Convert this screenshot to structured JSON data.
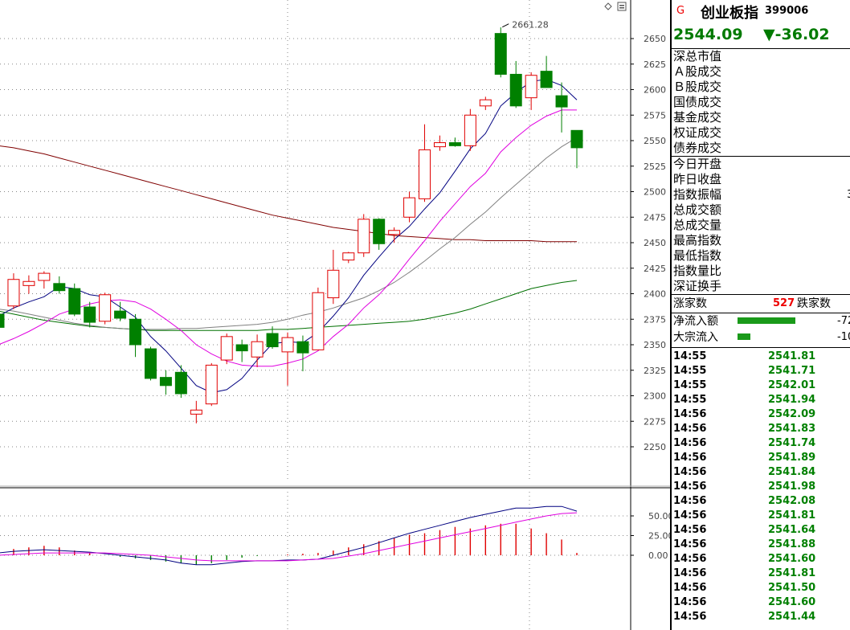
{
  "index": {
    "marker": "G",
    "name": "创业板指",
    "code": "399006",
    "price": "2544.09",
    "change": "▼-36.02"
  },
  "stats_a": [
    "深总市值",
    "Ａ股成交",
    "Ｂ股成交",
    "国债成交",
    "基金成交",
    "权证成交",
    "债券成交"
  ],
  "stats_b": [
    {
      "label": "今日开盘",
      "value": ""
    },
    {
      "label": "昨日收盘",
      "value": ""
    },
    {
      "label": "指数振幅",
      "value": "3"
    },
    {
      "label": "总成交额",
      "value": ""
    },
    {
      "label": "总成交量",
      "value": ""
    },
    {
      "label": "最高指数",
      "value": ""
    },
    {
      "label": "最低指数",
      "value": ""
    },
    {
      "label": "指数量比",
      "value": ""
    },
    {
      "label": "深证换手",
      "value": ""
    }
  ],
  "advance_decline": {
    "up_label": "涨家数",
    "down_count": "527",
    "down_label": "跌家数"
  },
  "flows": [
    {
      "label": "净流入额",
      "value": "-72",
      "bar": 0.55
    },
    {
      "label": "大宗流入",
      "value": "-10",
      "bar": 0.12
    }
  ],
  "ticks": [
    {
      "time": "14:55",
      "price": "2541.81"
    },
    {
      "time": "14:55",
      "price": "2541.71"
    },
    {
      "time": "14:55",
      "price": "2542.01"
    },
    {
      "time": "14:55",
      "price": "2541.94"
    },
    {
      "time": "14:56",
      "price": "2542.09"
    },
    {
      "time": "14:56",
      "price": "2541.83"
    },
    {
      "time": "14:56",
      "price": "2541.74"
    },
    {
      "time": "14:56",
      "price": "2541.89"
    },
    {
      "time": "14:56",
      "price": "2541.84"
    },
    {
      "time": "14:56",
      "price": "2541.98"
    },
    {
      "time": "14:56",
      "price": "2542.08"
    },
    {
      "time": "14:56",
      "price": "2541.81"
    },
    {
      "time": "14:56",
      "price": "2541.64"
    },
    {
      "time": "14:56",
      "price": "2541.88"
    },
    {
      "time": "14:56",
      "price": "2541.60"
    },
    {
      "time": "14:56",
      "price": "2541.81"
    },
    {
      "time": "14:56",
      "price": "2541.50"
    },
    {
      "time": "14:56",
      "price": "2541.60"
    },
    {
      "time": "14:56",
      "price": "2541.44"
    }
  ],
  "chart_data": [
    {
      "type": "candlestick",
      "title": "",
      "xlabel": "",
      "ylabel": "",
      "ylim": [
        2230,
        2670
      ],
      "yticks": [
        "2650",
        "2625",
        "2600",
        "2575",
        "2550",
        "2525",
        "2500",
        "2475",
        "2450",
        "2425",
        "2400",
        "2375",
        "2350",
        "2325",
        "2300",
        "2275",
        "2250"
      ],
      "grid": true,
      "annotation": "2661.28",
      "colors": {
        "up": "#e00000",
        "down": "#008000",
        "ma5": "#000080",
        "ma10": "#e000e0",
        "ma20": "#808080",
        "ma60": "#007000",
        "ma120": "#800000"
      },
      "candles": [
        {
          "o": 2380,
          "h": 2395,
          "l": 2363,
          "c": 2367
        },
        {
          "o": 2388,
          "h": 2420,
          "l": 2385,
          "c": 2414
        },
        {
          "o": 2408,
          "h": 2418,
          "l": 2400,
          "c": 2412
        },
        {
          "o": 2413,
          "h": 2422,
          "l": 2405,
          "c": 2420
        },
        {
          "o": 2410,
          "h": 2417,
          "l": 2400,
          "c": 2403
        },
        {
          "o": 2405,
          "h": 2410,
          "l": 2378,
          "c": 2380
        },
        {
          "o": 2387,
          "h": 2392,
          "l": 2367,
          "c": 2372
        },
        {
          "o": 2373,
          "h": 2401,
          "l": 2370,
          "c": 2399
        },
        {
          "o": 2383,
          "h": 2392,
          "l": 2373,
          "c": 2376
        },
        {
          "o": 2375,
          "h": 2380,
          "l": 2338,
          "c": 2350
        },
        {
          "o": 2346,
          "h": 2348,
          "l": 2315,
          "c": 2317
        },
        {
          "o": 2318,
          "h": 2325,
          "l": 2301,
          "c": 2310
        },
        {
          "o": 2323,
          "h": 2330,
          "l": 2298,
          "c": 2302
        },
        {
          "o": 2282,
          "h": 2295,
          "l": 2273,
          "c": 2286
        },
        {
          "o": 2292,
          "h": 2332,
          "l": 2290,
          "c": 2330
        },
        {
          "o": 2335,
          "h": 2361,
          "l": 2331,
          "c": 2358
        },
        {
          "o": 2350,
          "h": 2355,
          "l": 2333,
          "c": 2344
        },
        {
          "o": 2338,
          "h": 2360,
          "l": 2328,
          "c": 2353
        },
        {
          "o": 2361,
          "h": 2368,
          "l": 2346,
          "c": 2348
        },
        {
          "o": 2343,
          "h": 2362,
          "l": 2310,
          "c": 2357
        },
        {
          "o": 2353,
          "h": 2359,
          "l": 2324,
          "c": 2342
        },
        {
          "o": 2345,
          "h": 2406,
          "l": 2345,
          "c": 2401
        },
        {
          "o": 2396,
          "h": 2443,
          "l": 2390,
          "c": 2423
        },
        {
          "o": 2433,
          "h": 2441,
          "l": 2430,
          "c": 2440
        },
        {
          "o": 2440,
          "h": 2478,
          "l": 2436,
          "c": 2473
        },
        {
          "o": 2473,
          "h": 2474,
          "l": 2443,
          "c": 2449
        },
        {
          "o": 2458,
          "h": 2465,
          "l": 2450,
          "c": 2462
        },
        {
          "o": 2475,
          "h": 2500,
          "l": 2470,
          "c": 2494
        },
        {
          "o": 2493,
          "h": 2566,
          "l": 2490,
          "c": 2541
        },
        {
          "o": 2544,
          "h": 2555,
          "l": 2540,
          "c": 2548
        },
        {
          "o": 2548,
          "h": 2553,
          "l": 2544,
          "c": 2545
        },
        {
          "o": 2545,
          "h": 2581,
          "l": 2540,
          "c": 2575
        },
        {
          "o": 2584,
          "h": 2593,
          "l": 2580,
          "c": 2590
        },
        {
          "o": 2655,
          "h": 2661,
          "l": 2612,
          "c": 2615
        },
        {
          "o": 2615,
          "h": 2628,
          "l": 2582,
          "c": 2584
        },
        {
          "o": 2592,
          "h": 2617,
          "l": 2580,
          "c": 2614
        },
        {
          "o": 2618,
          "h": 2633,
          "l": 2602,
          "c": 2602
        },
        {
          "o": 2594,
          "h": 2607,
          "l": 2558,
          "c": 2583
        },
        {
          "o": 2560,
          "h": 2560,
          "l": 2523,
          "c": 2543
        }
      ],
      "ma5": [
        2378,
        2386,
        2392,
        2397,
        2407,
        2405,
        2399,
        2397,
        2387,
        2377,
        2358,
        2344,
        2327,
        2310,
        2303,
        2306,
        2317,
        2335,
        2351,
        2353,
        2352,
        2362,
        2378,
        2396,
        2418,
        2436,
        2453,
        2466,
        2483,
        2499,
        2520,
        2542,
        2557,
        2584,
        2597,
        2608,
        2610,
        2604,
        2590
      ],
      "ma10": [
        2350,
        2356,
        2363,
        2371,
        2380,
        2385,
        2390,
        2393,
        2394,
        2392,
        2385,
        2375,
        2364,
        2350,
        2341,
        2334,
        2330,
        2329,
        2329,
        2332,
        2336,
        2344,
        2358,
        2370,
        2386,
        2399,
        2415,
        2434,
        2452,
        2471,
        2488,
        2505,
        2518,
        2539,
        2553,
        2565,
        2574,
        2580,
        2580
      ],
      "ma20": [
        2385,
        2383,
        2380,
        2377,
        2374,
        2371,
        2369,
        2367,
        2366,
        2365,
        2365,
        2365,
        2366,
        2366,
        2367,
        2368,
        2369,
        2370,
        2372,
        2375,
        2379,
        2382,
        2386,
        2391,
        2396,
        2403,
        2411,
        2421,
        2432,
        2444,
        2455,
        2468,
        2480,
        2494,
        2507,
        2520,
        2533,
        2544,
        2553
      ],
      "ma60": [
        2383,
        2380,
        2377,
        2374,
        2372,
        2370,
        2368,
        2367,
        2366,
        2365,
        2364,
        2364,
        2364,
        2364,
        2364,
        2364,
        2364,
        2364,
        2365,
        2365,
        2366,
        2367,
        2368,
        2369,
        2370,
        2371,
        2372,
        2373,
        2375,
        2378,
        2381,
        2385,
        2390,
        2395,
        2400,
        2405,
        2408,
        2411,
        2413
      ],
      "ma120": [
        2545,
        2543,
        2540,
        2537,
        2533,
        2529,
        2525,
        2521,
        2517,
        2513,
        2509,
        2505,
        2501,
        2497,
        2493,
        2489,
        2485,
        2481,
        2477,
        2474,
        2471,
        2468,
        2465,
        2463,
        2461,
        2459,
        2457,
        2456,
        2455,
        2454,
        2453,
        2453,
        2452,
        2452,
        2452,
        2452,
        2451,
        2451,
        2451
      ]
    },
    {
      "type": "bar",
      "title": "",
      "xlabel": "",
      "ylabel": "",
      "ylim": [
        -15,
        75
      ],
      "yticks": [
        "50.00",
        "25.00",
        "0.00"
      ],
      "colors": {
        "pos": "#e00000",
        "neg": "#008000",
        "dif": "#000080",
        "dea": "#e000e0"
      },
      "values": [
        5,
        8,
        10,
        12,
        10,
        6,
        3,
        0,
        -2,
        -4,
        -6,
        -8,
        -10,
        -12,
        -10,
        -6,
        -3,
        -1,
        0,
        1,
        2,
        3,
        6,
        10,
        14,
        18,
        22,
        26,
        28,
        32,
        36,
        34,
        38,
        40,
        40,
        34,
        28,
        20,
        3
      ],
      "dif": [
        3,
        5,
        6,
        7,
        6,
        5,
        4,
        2,
        0,
        -2,
        -4,
        -6,
        -10,
        -12,
        -12,
        -10,
        -8,
        -7,
        -7,
        -6,
        -6,
        -5,
        0,
        5,
        10,
        16,
        22,
        28,
        33,
        38,
        43,
        48,
        52,
        56,
        60,
        60,
        62,
        62,
        56
      ],
      "dea": [
        0,
        1,
        2,
        3,
        3,
        3,
        3,
        3,
        2,
        1,
        0,
        -2,
        -4,
        -6,
        -7,
        -7,
        -7,
        -7,
        -7,
        -7,
        -6,
        -5,
        -4,
        -1,
        2,
        6,
        10,
        14,
        18,
        22,
        26,
        30,
        34,
        38,
        42,
        46,
        50,
        53,
        54
      ]
    }
  ]
}
